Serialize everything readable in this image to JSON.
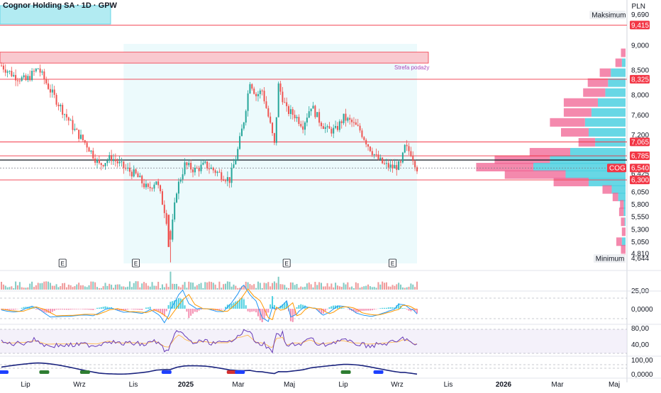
{
  "header": {
    "title": "Cognor Holding SA · 1D · GPW",
    "currency": "PLN"
  },
  "colors": {
    "up": "#26a69a",
    "down": "#ef5350",
    "level_line": "#f23645",
    "highlight_box": "#b2ebf2",
    "range_bg": "#e0f7fa",
    "supply_zone": "#f9c9cf",
    "vp_buy": "#4dd0e1",
    "vp_sell": "#f06292",
    "rsi": "#673ab7"
  },
  "price_axis": {
    "ticks": [
      "9,000",
      "8,500",
      "8,000",
      "7,600",
      "7,200",
      "6,425",
      "6,050",
      "5,800",
      "5,550",
      "5,300",
      "5,050",
      "4,810"
    ],
    "range": [
      4.62,
      9.72
    ],
    "max_label": "Maksimum",
    "max_value": "9,690",
    "min_label": "Minimum",
    "min_value": "4,644",
    "levels": [
      {
        "label": "9,415",
        "value": 9.415
      },
      {
        "label": "8,325",
        "value": 8.325
      },
      {
        "label": "7,065",
        "value": 7.065
      },
      {
        "label": "6,785",
        "value": 6.785
      },
      {
        "label": "6,300",
        "value": 6.3
      }
    ],
    "last_price": {
      "symbol": "COG",
      "label": "6,540",
      "value": 6.54
    }
  },
  "supply_zone": {
    "label": "Strefa podaży",
    "from": 8.65,
    "to": 8.87
  },
  "earnings_marker": "E",
  "time_axis": {
    "labels": [
      "Lip",
      "Wrz",
      "Lis",
      "2025",
      "Mar",
      "Maj",
      "Lip",
      "Wrz",
      "Lis",
      "2026",
      "Mar",
      "Maj"
    ]
  },
  "indicator_axes": {
    "volume": [
      "25,00"
    ],
    "macd": [
      "0,0000"
    ],
    "rsi": [
      "80,00",
      "40,00"
    ],
    "osc": [
      "100,00",
      "0,0000"
    ]
  },
  "chart_data": {
    "type": "candlestick",
    "symbol": "COG",
    "interval": "1D",
    "currency": "PLN",
    "y_range": [
      4.62,
      9.72
    ],
    "close_path": [
      [
        0,
        8.6
      ],
      [
        6,
        8.4
      ],
      [
        12,
        8.3
      ],
      [
        18,
        8.55
      ],
      [
        24,
        8.1
      ],
      [
        30,
        7.7
      ],
      [
        36,
        7.3
      ],
      [
        42,
        7.0
      ],
      [
        48,
        6.6
      ],
      [
        54,
        6.75
      ],
      [
        60,
        6.55
      ],
      [
        66,
        6.4
      ],
      [
        72,
        6.1
      ],
      [
        76,
        6.3
      ],
      [
        80,
        5.7
      ],
      [
        83,
        5.1
      ],
      [
        86,
        6.1
      ],
      [
        90,
        6.6
      ],
      [
        95,
        6.5
      ],
      [
        100,
        6.6
      ],
      [
        106,
        6.45
      ],
      [
        112,
        6.3
      ],
      [
        116,
        6.9
      ],
      [
        119,
        7.5
      ],
      [
        122,
        8.3
      ],
      [
        125,
        8.0
      ],
      [
        128,
        8.1
      ],
      [
        132,
        7.4
      ],
      [
        134,
        7.0
      ],
      [
        136,
        8.2
      ],
      [
        140,
        7.7
      ],
      [
        144,
        7.6
      ],
      [
        148,
        7.4
      ],
      [
        152,
        7.8
      ],
      [
        156,
        7.5
      ],
      [
        160,
        7.3
      ],
      [
        164,
        7.3
      ],
      [
        168,
        7.55
      ],
      [
        172,
        7.45
      ],
      [
        176,
        7.3
      ],
      [
        180,
        7.0
      ],
      [
        184,
        6.75
      ],
      [
        188,
        6.6
      ],
      [
        192,
        6.55
      ],
      [
        196,
        6.6
      ],
      [
        198,
        6.95
      ],
      [
        201,
        6.85
      ],
      [
        204,
        6.54
      ]
    ],
    "volume_profile": [
      {
        "price": 8.85,
        "buy": 0.0,
        "sell": 0.05
      },
      {
        "price": 8.65,
        "buy": 0.04,
        "sell": 0.07
      },
      {
        "price": 8.45,
        "buy": 0.16,
        "sell": 0.12
      },
      {
        "price": 8.25,
        "buy": 0.19,
        "sell": 0.22
      },
      {
        "price": 8.05,
        "buy": 0.22,
        "sell": 0.24
      },
      {
        "price": 7.85,
        "buy": 0.3,
        "sell": 0.37
      },
      {
        "price": 7.65,
        "buy": 0.37,
        "sell": 0.3
      },
      {
        "price": 7.45,
        "buy": 0.44,
        "sell": 0.38
      },
      {
        "price": 7.25,
        "buy": 0.4,
        "sell": 0.3
      },
      {
        "price": 7.05,
        "buy": 0.33,
        "sell": 0.18
      },
      {
        "price": 6.85,
        "buy": 0.6,
        "sell": 0.44
      },
      {
        "price": 6.7,
        "buy": 0.82,
        "sell": 0.6
      },
      {
        "price": 6.55,
        "buy": 1.0,
        "sell": 0.62
      },
      {
        "price": 6.4,
        "buy": 0.65,
        "sell": 0.66
      },
      {
        "price": 6.25,
        "buy": 0.4,
        "sell": 0.38
      },
      {
        "price": 6.1,
        "buy": 0.15,
        "sell": 0.1
      },
      {
        "price": 5.95,
        "buy": 0.08,
        "sell": 0.06
      },
      {
        "price": 5.8,
        "buy": 0.02,
        "sell": 0.04
      },
      {
        "price": 5.65,
        "buy": 0.02,
        "sell": 0.05
      },
      {
        "price": 5.45,
        "buy": 0.01,
        "sell": 0.04
      },
      {
        "price": 5.25,
        "buy": 0.0,
        "sell": 0.04
      },
      {
        "price": 5.05,
        "buy": 0.04,
        "sell": 0.06
      },
      {
        "price": 4.9,
        "buy": 0.0,
        "sell": 0.05
      },
      {
        "price": 4.72,
        "buy": 0.0,
        "sell": 0.05
      }
    ]
  }
}
